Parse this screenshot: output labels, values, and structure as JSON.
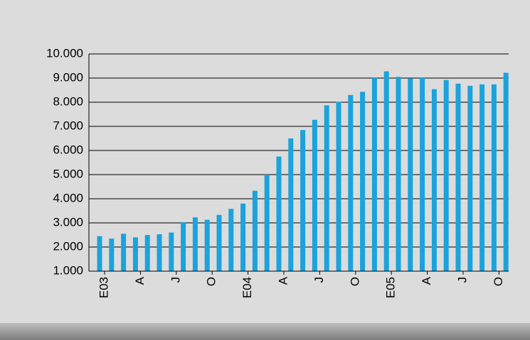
{
  "chart_data": {
    "type": "bar",
    "categories": [
      "E03",
      null,
      null,
      "A",
      null,
      null,
      "J",
      null,
      null,
      "O",
      null,
      null,
      "E04",
      null,
      null,
      "A",
      null,
      null,
      "J",
      null,
      null,
      "O",
      null,
      null,
      "E05",
      null,
      null,
      "A",
      null,
      null,
      "J",
      null,
      null,
      "O",
      null
    ],
    "values": [
      2450,
      2350,
      2550,
      2400,
      2500,
      2530,
      2600,
      3030,
      3230,
      3130,
      3330,
      3580,
      3800,
      4330,
      5000,
      5750,
      6500,
      6850,
      7270,
      7870,
      8020,
      8300,
      8430,
      9030,
      9280,
      9050,
      8990,
      9030,
      8540,
      8920,
      8770,
      8680,
      8740,
      8740,
      9220
    ],
    "color": "#1aa3dd",
    "ylim": [
      1000,
      10000
    ],
    "yticks": [
      {
        "value": 1000,
        "label": "1.000"
      },
      {
        "value": 2000,
        "label": "2.000"
      },
      {
        "value": 3000,
        "label": "3.000"
      },
      {
        "value": 4000,
        "label": "4.000"
      },
      {
        "value": 5000,
        "label": "5.000"
      },
      {
        "value": 6000,
        "label": "6.000"
      },
      {
        "value": 7000,
        "label": "7.000"
      },
      {
        "value": 8000,
        "label": "8.000"
      },
      {
        "value": 9000,
        "label": "9.000"
      },
      {
        "value": 10000,
        "label": "10.000"
      }
    ],
    "grid": true
  }
}
